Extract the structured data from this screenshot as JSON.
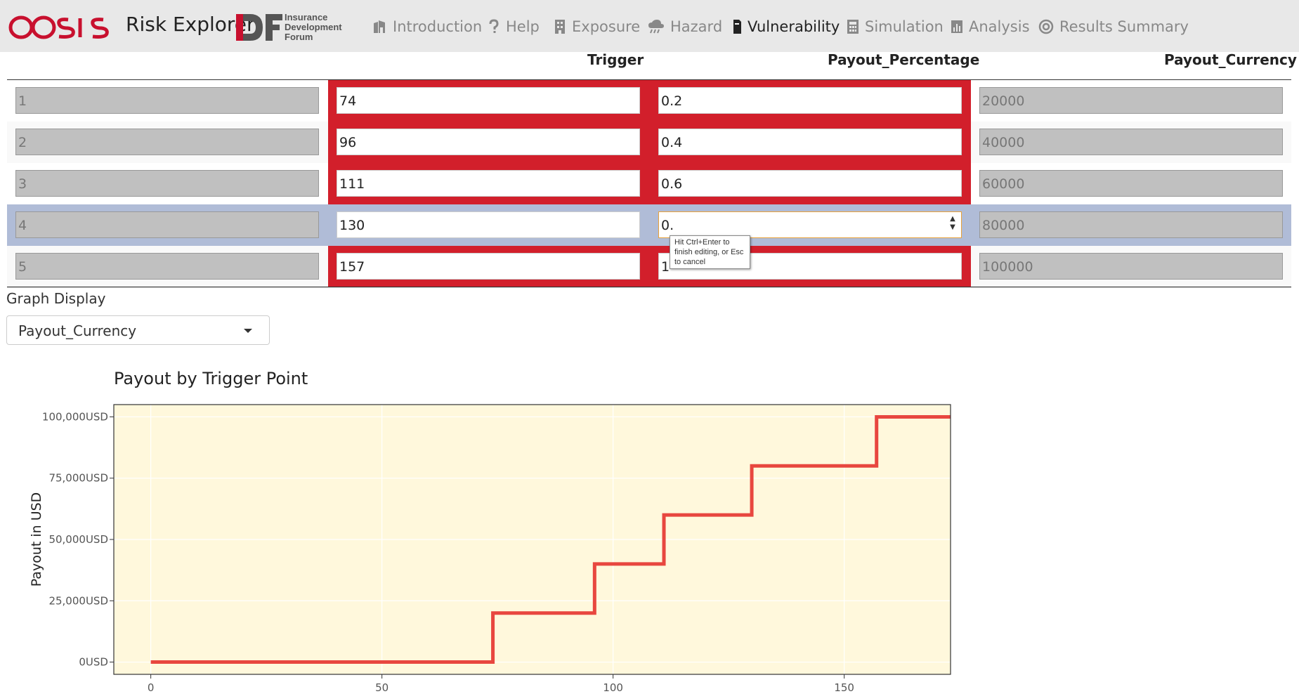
{
  "navbar": {
    "brand": "Risk Explorer",
    "idf_lines": [
      "Insurance",
      "Development",
      "Forum"
    ],
    "items": [
      {
        "label": "Introduction",
        "icon": "building-icon",
        "active": false
      },
      {
        "label": "Help",
        "icon": "question-icon",
        "active": false
      },
      {
        "label": "Exposure",
        "icon": "office-building-icon",
        "active": false
      },
      {
        "label": "Hazard",
        "icon": "cloud-rain-icon",
        "active": false
      },
      {
        "label": "Vulnerability",
        "icon": "file-icon",
        "active": true
      },
      {
        "label": "Simulation",
        "icon": "calculator-icon",
        "active": false
      },
      {
        "label": "Analysis",
        "icon": "bar-chart-icon",
        "active": false
      },
      {
        "label": "Results Summary",
        "icon": "target-icon",
        "active": false
      }
    ]
  },
  "table": {
    "headers": {
      "trigger": "Trigger",
      "payout_percentage": "Payout_Percentage",
      "payout_currency": "Payout_Currency"
    },
    "rows": [
      {
        "id": "1",
        "trigger": "74",
        "percentage": "0.2",
        "currency": "20000"
      },
      {
        "id": "2",
        "trigger": "96",
        "percentage": "0.4",
        "currency": "40000"
      },
      {
        "id": "3",
        "trigger": "111",
        "percentage": "0.6",
        "currency": "60000"
      },
      {
        "id": "4",
        "trigger": "130",
        "percentage": "0.",
        "currency": "80000"
      },
      {
        "id": "5",
        "trigger": "157",
        "percentage": "1",
        "currency": "100000"
      }
    ],
    "tooltip": "Hit Ctrl+Enter to finish editing, or Esc to cancel"
  },
  "graph_display": {
    "label": "Graph Display",
    "selected": "Payout_Currency"
  },
  "colors": {
    "invalid_cell": "#d21f2b",
    "selected_row": "#b0bcd7",
    "chart_panel": "#fff8dc",
    "line": "#e8473f",
    "oasis_brand": "#c8102e",
    "idf_brand": "#c8102e"
  },
  "chart_data": {
    "type": "line",
    "step": true,
    "title": "Payout by Trigger Point",
    "xlabel": "",
    "ylabel": "Payout in USD",
    "x": [
      0,
      74,
      74,
      96,
      96,
      111,
      111,
      130,
      130,
      157,
      157,
      173
    ],
    "y": [
      0,
      0,
      20000,
      20000,
      40000,
      40000,
      60000,
      60000,
      80000,
      80000,
      100000,
      100000
    ],
    "xlim": [
      -8,
      173
    ],
    "ylim": [
      -5000,
      105000
    ],
    "xticks": [
      0,
      50,
      100,
      150
    ],
    "xtick_labels": [
      "0",
      "50",
      "100",
      "150"
    ],
    "yticks": [
      0,
      25000,
      50000,
      75000,
      100000
    ],
    "ytick_labels": [
      "0USD",
      "25,000USD",
      "50,000USD",
      "75,000USD",
      "100,000USD"
    ],
    "grid": true,
    "legend": false
  }
}
